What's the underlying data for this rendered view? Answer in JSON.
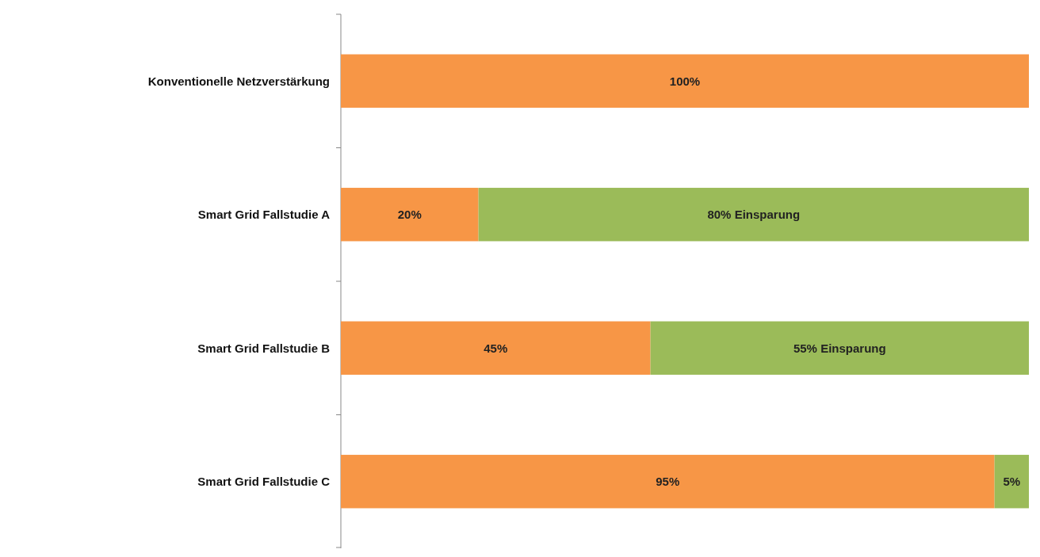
{
  "chart_data": {
    "type": "bar",
    "orientation": "horizontal",
    "stacked": true,
    "categories": [
      "Konventionelle Netzverstärkung",
      "Smart Grid Fallstudie A",
      "Smart Grid Fallstudie B",
      "Smart Grid Fallstudie C"
    ],
    "xlim": [
      0,
      100
    ],
    "tick_labels": "y",
    "series": [
      {
        "color": "#f79646",
        "values": [
          100,
          20,
          45,
          95
        ],
        "value_labels": [
          "100%",
          "20%",
          "45%",
          "95%"
        ]
      },
      {
        "color": "#9bbb59",
        "values": [
          null,
          80,
          55,
          5
        ],
        "value_labels": [
          null,
          "80% Einsparung",
          "55% Einsparung",
          "5%"
        ]
      }
    ]
  }
}
